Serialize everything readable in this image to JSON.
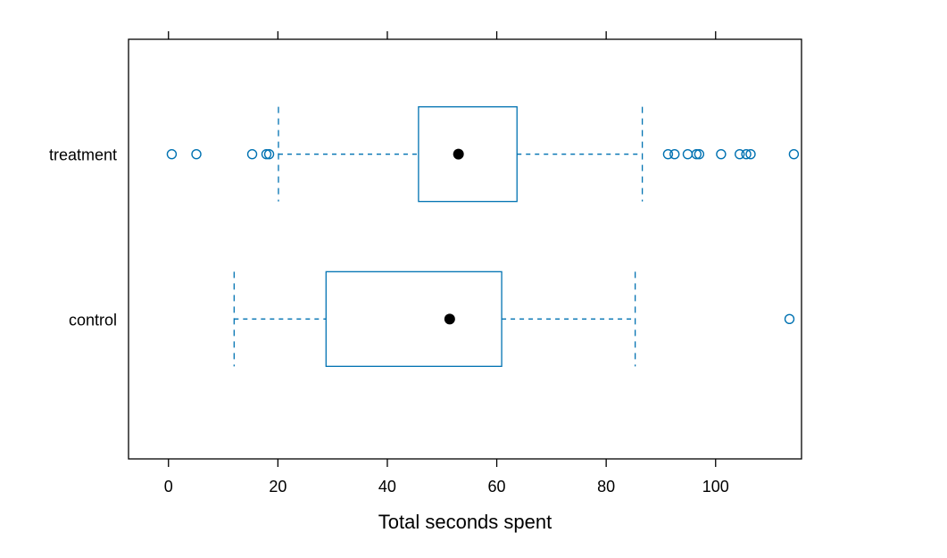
{
  "chart_data": {
    "type": "boxplot",
    "title": "",
    "xlabel": "Total seconds spent",
    "ylabel": "",
    "xlim": [
      -7.3,
      115.7
    ],
    "x_ticks": [
      0,
      20,
      40,
      60,
      80,
      100
    ],
    "x_tick_labels": [
      "0",
      "20",
      "40",
      "60",
      "80",
      "100"
    ],
    "grid": false,
    "colors": {
      "box": "#0072B2",
      "median": "#000000",
      "frame": "#000000"
    },
    "categories": [
      "treatment",
      "control"
    ],
    "groups": [
      {
        "name": "treatment",
        "whisker_low": 20.1,
        "q1": 45.7,
        "median": 53.0,
        "q3": 63.7,
        "whisker_high": 86.6,
        "outliers": [
          0.6,
          5.1,
          15.3,
          17.9,
          18.4,
          91.3,
          92.5,
          94.9,
          96.5,
          97.0,
          101.0,
          104.4,
          105.6,
          106.4,
          114.3
        ]
      },
      {
        "name": "control",
        "whisker_low": 12.0,
        "q1": 28.8,
        "median": 51.4,
        "q3": 60.9,
        "whisker_high": 85.3,
        "outliers": [
          113.5
        ]
      }
    ]
  }
}
